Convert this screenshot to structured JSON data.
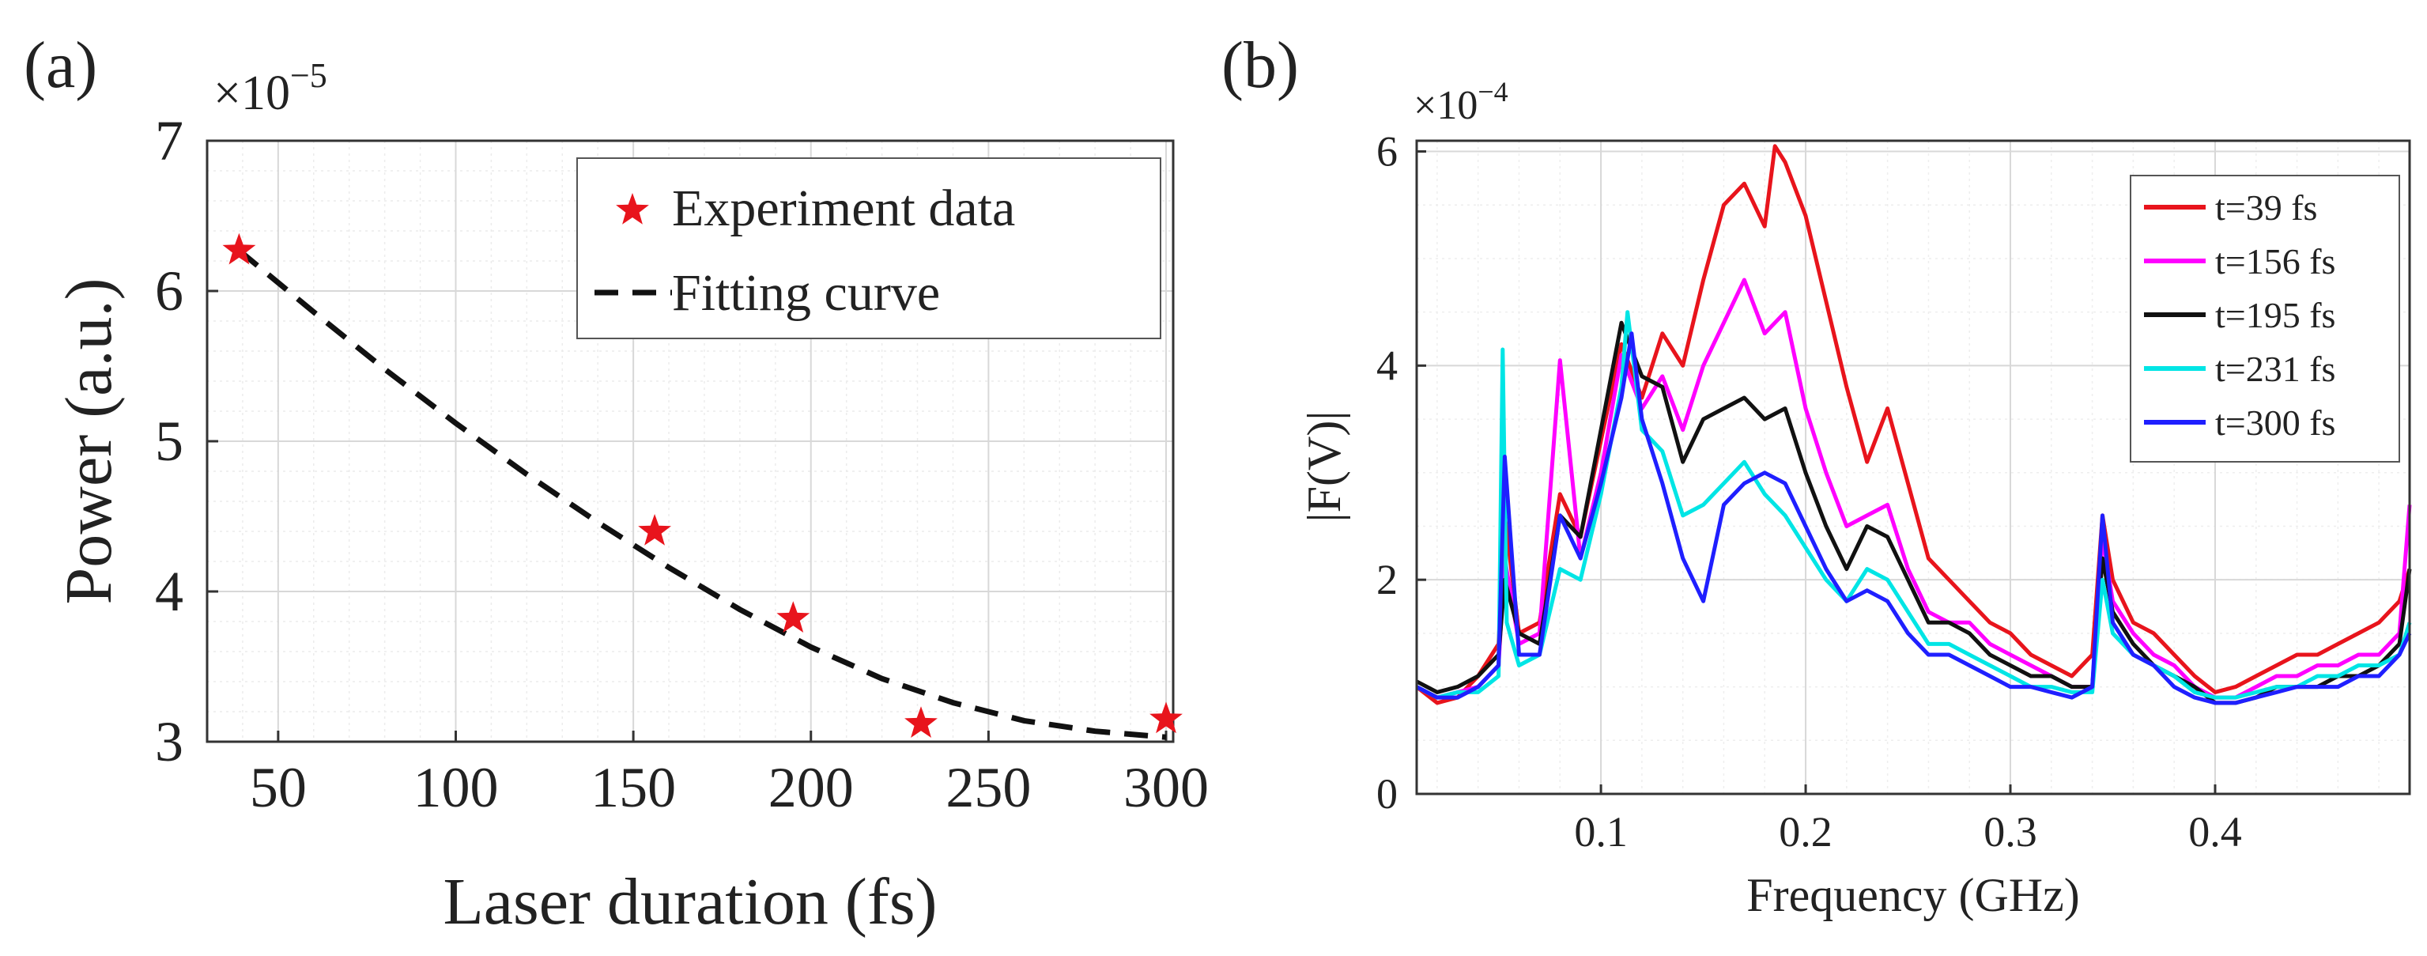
{
  "chart_data": [
    {
      "panel_label": "(a)",
      "type": "scatter",
      "xlabel": "Laser duration (fs)",
      "ylabel": "Power (a.u.)",
      "y_multiplier": {
        "base": "×10",
        "exponent": "−5"
      },
      "xlim": [
        30,
        302
      ],
      "ylim": [
        3,
        7
      ],
      "xticks": [
        50,
        100,
        150,
        200,
        250,
        300
      ],
      "yticks": [
        3,
        4,
        5,
        6,
        7
      ],
      "grid": true,
      "legend": {
        "position": "top-right",
        "entries": [
          "Experiment data",
          "Fitting curve"
        ]
      },
      "series": [
        {
          "name": "Experiment data",
          "style": "red-star",
          "color": "#e8141c",
          "x": [
            39,
            156,
            195,
            231,
            300
          ],
          "y": [
            6.27,
            4.4,
            3.82,
            3.12,
            3.15
          ]
        },
        {
          "name": "Fitting curve",
          "style": "black-dashed",
          "color": "#111111",
          "x": [
            39,
            60,
            80,
            100,
            120,
            140,
            160,
            180,
            200,
            220,
            240,
            260,
            280,
            300
          ],
          "y": [
            6.27,
            5.86,
            5.48,
            5.12,
            4.78,
            4.46,
            4.16,
            3.88,
            3.63,
            3.42,
            3.26,
            3.14,
            3.07,
            3.03
          ]
        }
      ]
    },
    {
      "panel_label": "(b)",
      "type": "line",
      "xlabel": "Frequency (GHz)",
      "ylabel": "|F(V)|",
      "y_multiplier": {
        "base": "×10",
        "exponent": "−4"
      },
      "xlim": [
        0.01,
        0.495
      ],
      "ylim": [
        0,
        6.1
      ],
      "xticks": [
        0.1,
        0.2,
        0.3,
        0.4
      ],
      "yticks": [
        0,
        2,
        4,
        6
      ],
      "grid": true,
      "legend": {
        "position": "top-right",
        "entries": [
          "t=39 fs",
          "t=156 fs",
          "t=195 fs",
          "t=231 fs",
          "t=300 fs"
        ]
      },
      "series": [
        {
          "name": "t=39 fs",
          "color": "#e8141c",
          "x": [
            0.01,
            0.02,
            0.03,
            0.04,
            0.05,
            0.053,
            0.06,
            0.07,
            0.08,
            0.09,
            0.1,
            0.11,
            0.12,
            0.13,
            0.14,
            0.15,
            0.16,
            0.17,
            0.18,
            0.185,
            0.19,
            0.2,
            0.21,
            0.22,
            0.23,
            0.24,
            0.25,
            0.26,
            0.27,
            0.28,
            0.29,
            0.3,
            0.31,
            0.32,
            0.33,
            0.34,
            0.345,
            0.35,
            0.36,
            0.37,
            0.38,
            0.39,
            0.4,
            0.41,
            0.42,
            0.43,
            0.44,
            0.45,
            0.46,
            0.47,
            0.48,
            0.49,
            0.495
          ],
          "y": [
            1.0,
            0.85,
            0.9,
            1.1,
            1.4,
            2.6,
            1.5,
            1.6,
            2.8,
            2.4,
            3.3,
            4.2,
            3.7,
            4.3,
            4.0,
            4.8,
            5.5,
            5.7,
            5.3,
            6.05,
            5.9,
            5.4,
            4.6,
            3.8,
            3.1,
            3.6,
            2.9,
            2.2,
            2.0,
            1.8,
            1.6,
            1.5,
            1.3,
            1.2,
            1.1,
            1.3,
            2.6,
            2.0,
            1.6,
            1.5,
            1.3,
            1.1,
            0.95,
            1.0,
            1.1,
            1.2,
            1.3,
            1.3,
            1.4,
            1.5,
            1.6,
            1.8,
            2.1
          ]
        },
        {
          "name": "t=156 fs",
          "color": "#ff00ff",
          "x": [
            0.01,
            0.02,
            0.03,
            0.04,
            0.05,
            0.053,
            0.06,
            0.07,
            0.08,
            0.09,
            0.1,
            0.11,
            0.12,
            0.13,
            0.14,
            0.15,
            0.16,
            0.17,
            0.18,
            0.19,
            0.2,
            0.21,
            0.22,
            0.23,
            0.24,
            0.25,
            0.26,
            0.27,
            0.28,
            0.29,
            0.3,
            0.31,
            0.32,
            0.33,
            0.34,
            0.345,
            0.35,
            0.36,
            0.37,
            0.38,
            0.39,
            0.4,
            0.41,
            0.42,
            0.43,
            0.44,
            0.45,
            0.46,
            0.47,
            0.48,
            0.49,
            0.495
          ],
          "y": [
            1.0,
            0.9,
            0.95,
            1.0,
            1.2,
            2.2,
            1.4,
            1.5,
            4.05,
            2.2,
            3.0,
            4.1,
            3.6,
            3.9,
            3.4,
            4.0,
            4.4,
            4.8,
            4.3,
            4.5,
            3.6,
            3.0,
            2.5,
            2.6,
            2.7,
            2.1,
            1.7,
            1.6,
            1.6,
            1.4,
            1.3,
            1.2,
            1.1,
            1.0,
            1.0,
            2.4,
            1.8,
            1.5,
            1.3,
            1.2,
            1.0,
            0.9,
            0.9,
            1.0,
            1.1,
            1.1,
            1.2,
            1.2,
            1.3,
            1.3,
            1.5,
            2.7
          ]
        },
        {
          "name": "t=195 fs",
          "color": "#111111",
          "x": [
            0.01,
            0.02,
            0.03,
            0.04,
            0.05,
            0.053,
            0.06,
            0.07,
            0.08,
            0.09,
            0.1,
            0.11,
            0.12,
            0.13,
            0.14,
            0.15,
            0.16,
            0.17,
            0.18,
            0.19,
            0.2,
            0.21,
            0.22,
            0.23,
            0.24,
            0.25,
            0.26,
            0.27,
            0.28,
            0.29,
            0.3,
            0.31,
            0.32,
            0.33,
            0.34,
            0.345,
            0.35,
            0.36,
            0.37,
            0.38,
            0.39,
            0.4,
            0.41,
            0.42,
            0.43,
            0.44,
            0.45,
            0.46,
            0.47,
            0.48,
            0.49,
            0.495
          ],
          "y": [
            1.05,
            0.95,
            1.0,
            1.1,
            1.3,
            2.0,
            1.5,
            1.4,
            2.6,
            2.4,
            3.4,
            4.4,
            3.9,
            3.8,
            3.1,
            3.5,
            3.6,
            3.7,
            3.5,
            3.6,
            3.0,
            2.5,
            2.1,
            2.5,
            2.4,
            2.0,
            1.6,
            1.6,
            1.5,
            1.3,
            1.2,
            1.1,
            1.1,
            1.0,
            1.0,
            2.2,
            1.7,
            1.4,
            1.2,
            1.1,
            1.0,
            0.85,
            0.85,
            0.9,
            1.0,
            1.0,
            1.0,
            1.1,
            1.1,
            1.2,
            1.4,
            2.1
          ]
        },
        {
          "name": "t=231 fs",
          "color": "#00e5e5",
          "x": [
            0.01,
            0.02,
            0.03,
            0.04,
            0.05,
            0.052,
            0.054,
            0.06,
            0.07,
            0.08,
            0.09,
            0.1,
            0.11,
            0.113,
            0.12,
            0.13,
            0.14,
            0.15,
            0.16,
            0.17,
            0.18,
            0.19,
            0.2,
            0.21,
            0.22,
            0.23,
            0.24,
            0.25,
            0.26,
            0.27,
            0.28,
            0.29,
            0.3,
            0.31,
            0.32,
            0.33,
            0.34,
            0.345,
            0.35,
            0.36,
            0.37,
            0.38,
            0.39,
            0.4,
            0.41,
            0.42,
            0.43,
            0.44,
            0.45,
            0.46,
            0.47,
            0.48,
            0.49,
            0.495
          ],
          "y": [
            1.0,
            0.9,
            0.95,
            0.95,
            1.1,
            4.15,
            1.6,
            1.2,
            1.3,
            2.1,
            2.0,
            2.8,
            3.8,
            4.5,
            3.4,
            3.2,
            2.6,
            2.7,
            2.9,
            3.1,
            2.8,
            2.6,
            2.3,
            2.0,
            1.8,
            2.1,
            2.0,
            1.7,
            1.4,
            1.4,
            1.3,
            1.2,
            1.1,
            1.0,
            1.0,
            0.95,
            0.95,
            2.0,
            1.5,
            1.3,
            1.2,
            1.1,
            0.95,
            0.9,
            0.9,
            0.95,
            1.0,
            1.0,
            1.1,
            1.1,
            1.2,
            1.2,
            1.3,
            1.6
          ]
        },
        {
          "name": "t=300 fs",
          "color": "#1f1fff",
          "x": [
            0.01,
            0.02,
            0.03,
            0.04,
            0.05,
            0.053,
            0.06,
            0.07,
            0.08,
            0.09,
            0.1,
            0.11,
            0.115,
            0.12,
            0.13,
            0.14,
            0.15,
            0.16,
            0.17,
            0.18,
            0.19,
            0.2,
            0.21,
            0.22,
            0.23,
            0.24,
            0.25,
            0.26,
            0.27,
            0.28,
            0.29,
            0.3,
            0.31,
            0.32,
            0.33,
            0.34,
            0.345,
            0.35,
            0.36,
            0.37,
            0.38,
            0.39,
            0.4,
            0.41,
            0.42,
            0.43,
            0.44,
            0.45,
            0.46,
            0.47,
            0.48,
            0.49,
            0.495
          ],
          "y": [
            1.0,
            0.9,
            0.9,
            1.0,
            1.2,
            3.15,
            1.3,
            1.3,
            2.6,
            2.2,
            2.9,
            3.7,
            4.3,
            3.5,
            2.9,
            2.2,
            1.8,
            2.7,
            2.9,
            3.0,
            2.9,
            2.5,
            2.1,
            1.8,
            1.9,
            1.8,
            1.5,
            1.3,
            1.3,
            1.2,
            1.1,
            1.0,
            1.0,
            0.95,
            0.9,
            1.0,
            2.6,
            1.6,
            1.3,
            1.2,
            1.0,
            0.9,
            0.85,
            0.85,
            0.9,
            0.95,
            1.0,
            1.0,
            1.0,
            1.1,
            1.1,
            1.3,
            1.5
          ]
        }
      ]
    }
  ]
}
